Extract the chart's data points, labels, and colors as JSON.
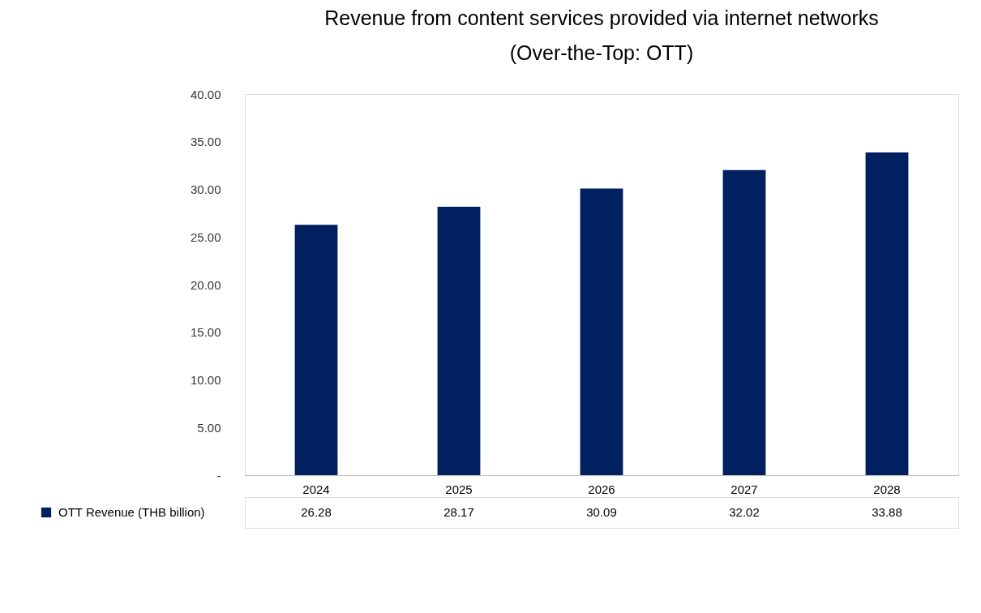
{
  "chart_data": {
    "type": "bar",
    "title": "Revenue from content services provided via internet networks",
    "subtitle": "(Over-the-Top: OTT)",
    "categories": [
      "2024",
      "2025",
      "2026",
      "2027",
      "2028"
    ],
    "series": [
      {
        "name": "OTT Revenue (THB billion)",
        "color": "#002060",
        "values": [
          26.28,
          28.17,
          30.09,
          32.02,
          33.88
        ]
      }
    ],
    "ylim": [
      0,
      40
    ],
    "yticks": [
      {
        "value": 0,
        "label": "-"
      },
      {
        "value": 5,
        "label": "5.00"
      },
      {
        "value": 10,
        "label": "10.00"
      },
      {
        "value": 15,
        "label": "15.00"
      },
      {
        "value": 20,
        "label": "20.00"
      },
      {
        "value": 25,
        "label": "25.00"
      },
      {
        "value": 30,
        "label": "30.00"
      },
      {
        "value": 35,
        "label": "35.00"
      },
      {
        "value": 40,
        "label": "40.00"
      }
    ],
    "data_labels": true,
    "legend": "bottom",
    "grid": false
  }
}
